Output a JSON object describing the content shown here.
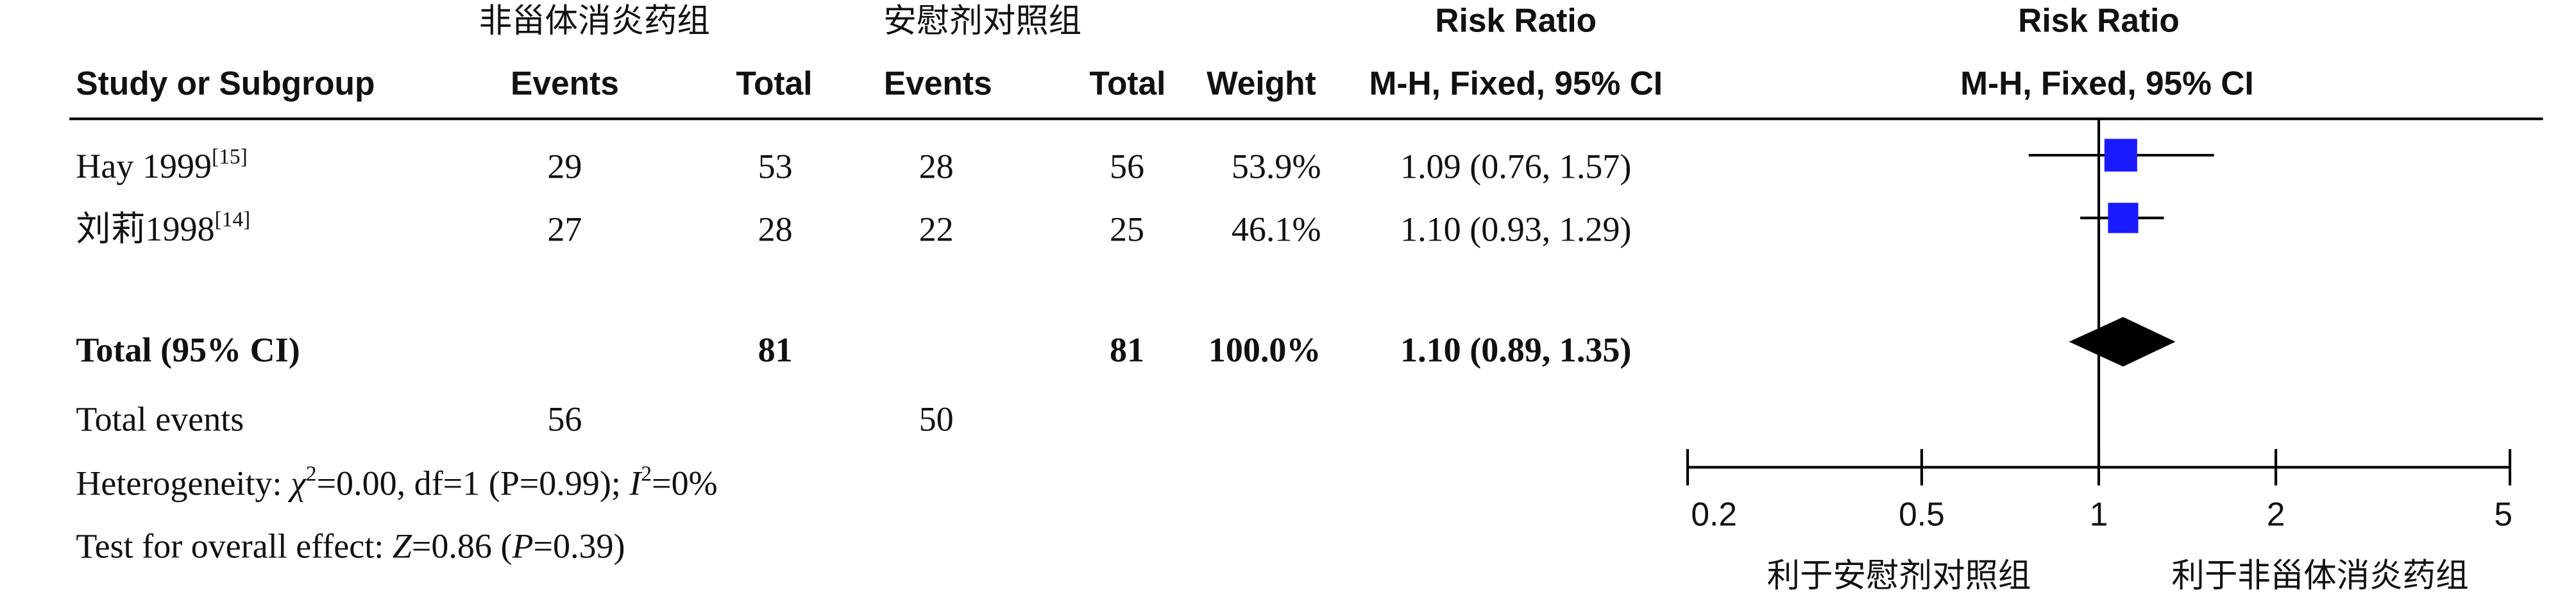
{
  "chart_data": {
    "type": "forest",
    "group_labels": [
      "非甾体消炎药组",
      "安慰剂对照组"
    ],
    "columns": [
      "Study or Subgroup",
      "Events",
      "Total",
      "Events",
      "Total",
      "Weight"
    ],
    "rr_header": [
      "Risk Ratio",
      "M-H, Fixed, 95% CI"
    ],
    "plot_header": [
      "Risk Ratio",
      "M-H, Fixed, 95% CI"
    ],
    "studies": [
      {
        "name": "Hay 1999",
        "ref": "[15]",
        "e1": 29,
        "n1": 53,
        "e2": 28,
        "n2": 56,
        "weight": 53.9,
        "weight_label": "53.9%",
        "rr": 1.09,
        "ci": [
          0.76,
          1.57
        ],
        "rr_label": "1.09 (0.76, 1.57)"
      },
      {
        "name": "刘莉1998",
        "ref": "[14]",
        "e1": 27,
        "n1": 28,
        "e2": 22,
        "n2": 25,
        "weight": 46.1,
        "weight_label": "46.1%",
        "rr": 1.1,
        "ci": [
          0.93,
          1.29
        ],
        "rr_label": "1.10 (0.93, 1.29)"
      }
    ],
    "total": {
      "name": "Total (95% CI)",
      "n1": 81,
      "n2": 81,
      "weight": 100.0,
      "weight_label": "100.0%",
      "rr": 1.1,
      "ci": [
        0.89,
        1.35
      ],
      "rr_label": "1.10 (0.89, 1.35)"
    },
    "total_events": {
      "name": "Total events",
      "e1": 56,
      "e2": 50
    },
    "heterogeneity": [
      "Heterogeneity: ",
      "χ",
      "2",
      "=0.00, df=1 (",
      "P",
      "=0.99); ",
      "I",
      "2",
      "=0%"
    ],
    "overall_effect": [
      "Test for overall effect: ",
      "Z",
      "=0.86 (",
      "P",
      "=0.39)"
    ],
    "xlim": [
      0.2,
      5
    ],
    "xticks": [
      0.2,
      0.5,
      1,
      2,
      5
    ],
    "log_scale": true,
    "reference_line": 1,
    "favours": [
      "利于安慰剂对照组",
      "利于非甾体消炎药组"
    ],
    "color": "#1a1aff"
  }
}
